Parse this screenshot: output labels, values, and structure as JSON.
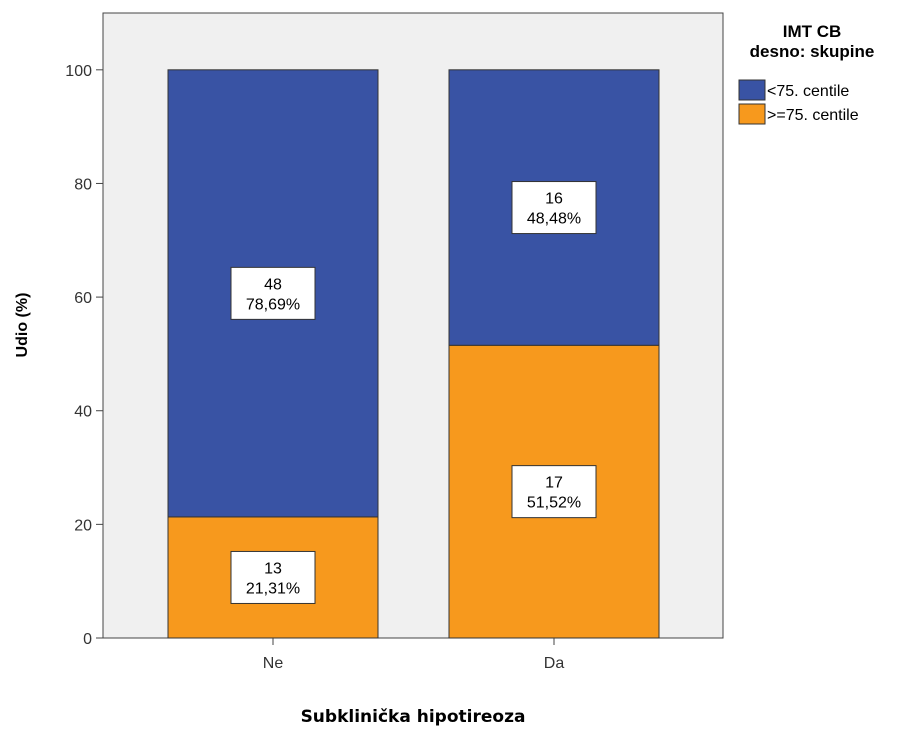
{
  "chart_data": {
    "type": "bar",
    "stacked": true,
    "categories": [
      "Ne",
      "Da"
    ],
    "series": [
      {
        "name": ">=75. centile",
        "color": "#f7991d",
        "counts": [
          13,
          17
        ],
        "values": [
          21.31,
          51.52
        ],
        "labels": [
          "21,31%",
          "51,52%"
        ]
      },
      {
        "name": "<75. centile",
        "color": "#3953a4",
        "counts": [
          48,
          16
        ],
        "values": [
          78.69,
          48.48
        ],
        "labels": [
          "78,69%",
          "48,48%"
        ]
      }
    ],
    "title": "",
    "xlabel": "Subklinička hipotireoza",
    "ylabel": "Udio (%)",
    "ylim": [
      0,
      110
    ],
    "yticks": [
      0,
      20,
      40,
      60,
      80,
      100
    ],
    "grid": false,
    "legend": {
      "title_lines": [
        "IMT CB",
        "desno: skupine"
      ],
      "entries": [
        "<75. centile",
        ">=75. centile"
      ],
      "colors": [
        "#3953a4",
        "#f7991d"
      ],
      "placement": "top-right"
    },
    "plot_background": "#f0f0f0"
  }
}
